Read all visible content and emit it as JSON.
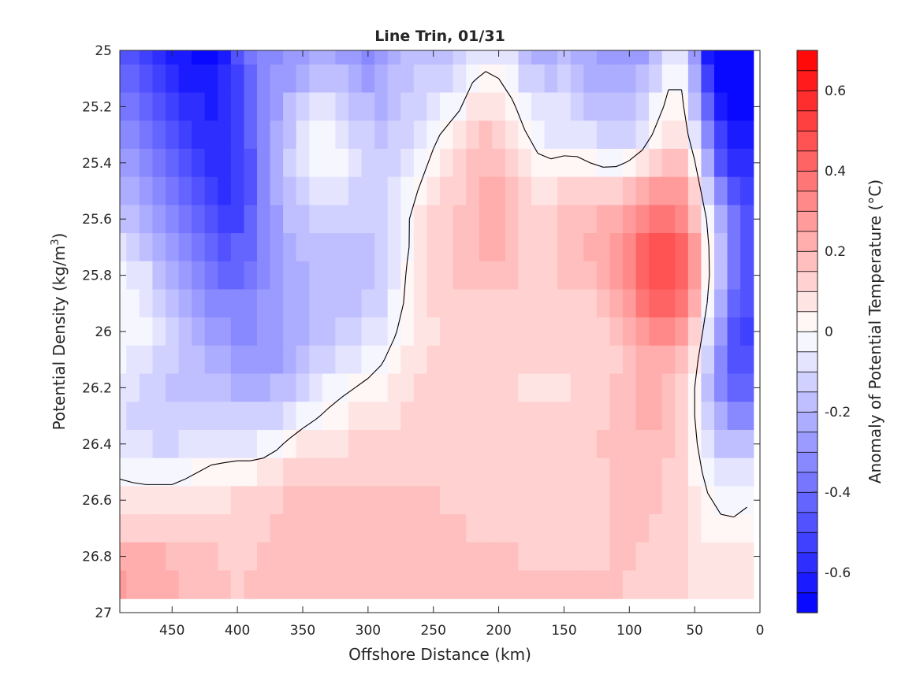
{
  "chart_data": {
    "type": "heatmap",
    "title": "Line Trin, 01/31",
    "xlabel": "Offshore Distance (km)",
    "ylabel_main": "Potential Density (kg/m",
    "ylabel_sup": "3",
    "ylabel_close": ")",
    "xlim": [
      490,
      0
    ],
    "ylim": [
      25,
      27
    ],
    "x_reversed": true,
    "y_reversed": true,
    "xticks": [
      450,
      400,
      350,
      300,
      250,
      200,
      150,
      100,
      50,
      0
    ],
    "xtick_labels": [
      "450",
      "400",
      "350",
      "300",
      "250",
      "200",
      "150",
      "100",
      "50",
      "0"
    ],
    "yticks": [
      25,
      25.2,
      25.4,
      25.6,
      25.8,
      26,
      26.2,
      26.4,
      26.6,
      26.8,
      27
    ],
    "ytick_labels": [
      "25",
      "25.2",
      "25.4",
      "25.6",
      "25.8",
      "26",
      "26.2",
      "26.4",
      "26.6",
      "26.8",
      "27"
    ],
    "colorbar": {
      "label": "Anomaly of Potential Temperature (°C)",
      "range": [
        -0.7,
        0.7
      ],
      "levels": 28,
      "ticks": [
        -0.6,
        -0.4,
        -0.2,
        0,
        0.2,
        0.4,
        0.6
      ],
      "tick_labels": [
        "-0.6",
        "-0.4",
        "-0.2",
        "0",
        "0.2",
        "0.4",
        "0.6"
      ],
      "colormap": "blue-white-red",
      "color_min": "#0000ff",
      "color_mid": "#ffffff",
      "color_max": "#ff0000"
    },
    "grid": {
      "x": [
        490,
        480,
        470,
        460,
        450,
        440,
        430,
        420,
        410,
        400,
        390,
        380,
        370,
        360,
        350,
        340,
        330,
        320,
        310,
        300,
        290,
        280,
        270,
        260,
        250,
        240,
        230,
        220,
        210,
        200,
        190,
        180,
        170,
        160,
        150,
        140,
        130,
        120,
        110,
        100,
        90,
        80,
        70,
        60,
        50,
        40,
        30,
        20,
        10
      ],
      "y": [
        25.0,
        25.1,
        25.2,
        25.3,
        25.4,
        25.5,
        25.6,
        25.7,
        25.8,
        25.9,
        26.0,
        26.1,
        26.2,
        26.3,
        26.4,
        26.5,
        26.6,
        26.7,
        26.8,
        26.9
      ],
      "cells": [
        [
          -0.47,
          -0.49,
          -0.51,
          -0.55,
          -0.6,
          -0.64,
          -0.66,
          -0.66,
          -0.6,
          -0.49,
          -0.39,
          -0.33,
          -0.31,
          -0.3,
          -0.27,
          -0.24,
          -0.24,
          -0.27,
          -0.3,
          -0.32,
          -0.29,
          -0.23,
          -0.18,
          -0.16,
          -0.18,
          -0.17,
          -0.13,
          -0.09,
          -0.06,
          -0.07,
          -0.1,
          -0.17,
          -0.21,
          -0.22,
          -0.2,
          -0.21,
          -0.24,
          -0.26,
          -0.29,
          -0.3,
          -0.26,
          -0.17,
          -0.07,
          -0.07,
          -0.3,
          -0.61,
          -0.7,
          -0.7,
          -0.7
        ],
        [
          -0.43,
          -0.44,
          -0.46,
          -0.5,
          -0.56,
          -0.6,
          -0.63,
          -0.63,
          -0.59,
          -0.5,
          -0.4,
          -0.33,
          -0.29,
          -0.26,
          -0.22,
          -0.18,
          -0.18,
          -0.2,
          -0.24,
          -0.26,
          -0.25,
          -0.2,
          -0.16,
          -0.14,
          -0.13,
          -0.12,
          -0.07,
          -0.01,
          0.02,
          0.0,
          -0.05,
          -0.11,
          -0.15,
          -0.16,
          -0.15,
          -0.17,
          -0.21,
          -0.23,
          -0.25,
          -0.25,
          -0.2,
          -0.11,
          -0.02,
          -0.02,
          -0.23,
          -0.52,
          -0.7,
          -0.7,
          -0.7
        ],
        [
          -0.38,
          -0.39,
          -0.42,
          -0.46,
          -0.51,
          -0.56,
          -0.59,
          -0.61,
          -0.58,
          -0.51,
          -0.42,
          -0.33,
          -0.26,
          -0.2,
          -0.14,
          -0.09,
          -0.08,
          -0.12,
          -0.16,
          -0.2,
          -0.21,
          -0.18,
          -0.15,
          -0.11,
          -0.08,
          -0.05,
          -0.01,
          0.06,
          0.09,
          0.08,
          0.02,
          -0.05,
          -0.09,
          -0.1,
          -0.1,
          -0.13,
          -0.17,
          -0.19,
          -0.2,
          -0.18,
          -0.13,
          -0.05,
          0.03,
          0.03,
          -0.16,
          -0.42,
          -0.62,
          -0.7,
          -0.7
        ],
        [
          -0.33,
          -0.34,
          -0.37,
          -0.41,
          -0.46,
          -0.52,
          -0.56,
          -0.59,
          -0.58,
          -0.52,
          -0.43,
          -0.33,
          -0.24,
          -0.16,
          -0.08,
          -0.02,
          -0.02,
          -0.06,
          -0.11,
          -0.15,
          -0.17,
          -0.15,
          -0.12,
          -0.07,
          -0.02,
          0.02,
          0.06,
          0.11,
          0.15,
          0.13,
          0.08,
          0.01,
          -0.04,
          -0.06,
          -0.06,
          -0.07,
          -0.1,
          -0.12,
          -0.13,
          -0.11,
          -0.06,
          0.02,
          0.08,
          0.09,
          -0.09,
          -0.34,
          -0.53,
          -0.63,
          -0.64
        ],
        [
          -0.28,
          -0.28,
          -0.31,
          -0.36,
          -0.42,
          -0.47,
          -0.53,
          -0.57,
          -0.58,
          -0.54,
          -0.45,
          -0.34,
          -0.24,
          -0.15,
          -0.07,
          -0.02,
          -0.02,
          -0.05,
          -0.09,
          -0.12,
          -0.14,
          -0.12,
          -0.08,
          -0.03,
          0.02,
          0.07,
          0.11,
          0.15,
          0.18,
          0.17,
          0.12,
          0.07,
          0.02,
          0.01,
          0.02,
          0.02,
          0.0,
          -0.02,
          -0.02,
          0.01,
          0.05,
          0.1,
          0.15,
          0.16,
          0.01,
          -0.24,
          -0.45,
          -0.55,
          -0.56
        ],
        [
          -0.22,
          -0.23,
          -0.26,
          -0.32,
          -0.38,
          -0.44,
          -0.49,
          -0.54,
          -0.56,
          -0.53,
          -0.45,
          -0.35,
          -0.25,
          -0.17,
          -0.11,
          -0.08,
          -0.07,
          -0.08,
          -0.11,
          -0.13,
          -0.13,
          -0.09,
          -0.04,
          0.01,
          0.06,
          0.1,
          0.14,
          0.18,
          0.21,
          0.2,
          0.16,
          0.11,
          0.07,
          0.07,
          0.1,
          0.13,
          0.12,
          0.11,
          0.13,
          0.16,
          0.21,
          0.25,
          0.26,
          0.25,
          0.11,
          -0.12,
          -0.34,
          -0.47,
          -0.51
        ],
        [
          -0.16,
          -0.17,
          -0.21,
          -0.27,
          -0.33,
          -0.39,
          -0.44,
          -0.48,
          -0.51,
          -0.5,
          -0.44,
          -0.35,
          -0.26,
          -0.2,
          -0.16,
          -0.14,
          -0.13,
          -0.13,
          -0.14,
          -0.14,
          -0.13,
          -0.08,
          -0.01,
          0.05,
          0.1,
          0.13,
          0.16,
          0.19,
          0.22,
          0.21,
          0.18,
          0.13,
          0.11,
          0.11,
          0.15,
          0.18,
          0.19,
          0.2,
          0.24,
          0.29,
          0.34,
          0.37,
          0.37,
          0.33,
          0.19,
          -0.02,
          -0.24,
          -0.39,
          -0.46
        ],
        [
          -0.1,
          -0.12,
          -0.16,
          -0.22,
          -0.28,
          -0.34,
          -0.39,
          -0.43,
          -0.45,
          -0.44,
          -0.4,
          -0.34,
          -0.27,
          -0.23,
          -0.2,
          -0.18,
          -0.17,
          -0.17,
          -0.16,
          -0.16,
          -0.14,
          -0.09,
          -0.01,
          0.06,
          0.11,
          0.14,
          0.17,
          0.19,
          0.21,
          0.2,
          0.17,
          0.14,
          0.12,
          0.13,
          0.16,
          0.19,
          0.2,
          0.23,
          0.28,
          0.35,
          0.41,
          0.45,
          0.45,
          0.41,
          0.25,
          0.02,
          -0.2,
          -0.36,
          -0.45
        ],
        [
          -0.05,
          -0.07,
          -0.1,
          -0.16,
          -0.22,
          -0.28,
          -0.33,
          -0.38,
          -0.4,
          -0.4,
          -0.36,
          -0.31,
          -0.26,
          -0.23,
          -0.21,
          -0.19,
          -0.19,
          -0.18,
          -0.17,
          -0.17,
          -0.14,
          -0.08,
          0.01,
          0.07,
          0.11,
          0.13,
          0.15,
          0.17,
          0.18,
          0.17,
          0.15,
          0.13,
          0.12,
          0.12,
          0.15,
          0.17,
          0.18,
          0.21,
          0.27,
          0.34,
          0.41,
          0.45,
          0.45,
          0.41,
          0.26,
          0.03,
          -0.2,
          -0.37,
          -0.46
        ],
        [
          -0.02,
          -0.03,
          -0.06,
          -0.11,
          -0.16,
          -0.22,
          -0.27,
          -0.31,
          -0.34,
          -0.35,
          -0.33,
          -0.29,
          -0.26,
          -0.23,
          -0.21,
          -0.19,
          -0.18,
          -0.17,
          -0.16,
          -0.15,
          -0.11,
          -0.05,
          0.02,
          0.07,
          0.1,
          0.11,
          0.12,
          0.13,
          0.14,
          0.14,
          0.13,
          0.12,
          0.11,
          0.11,
          0.12,
          0.13,
          0.14,
          0.17,
          0.22,
          0.29,
          0.36,
          0.4,
          0.41,
          0.36,
          0.21,
          -0.01,
          -0.24,
          -0.4,
          -0.48
        ],
        [
          -0.02,
          -0.03,
          -0.05,
          -0.09,
          -0.14,
          -0.18,
          -0.22,
          -0.26,
          -0.29,
          -0.31,
          -0.31,
          -0.29,
          -0.27,
          -0.24,
          -0.21,
          -0.19,
          -0.17,
          -0.15,
          -0.13,
          -0.1,
          -0.06,
          -0.01,
          0.04,
          0.08,
          0.09,
          0.1,
          0.1,
          0.1,
          0.11,
          0.11,
          0.11,
          0.11,
          0.1,
          0.1,
          0.11,
          0.11,
          0.12,
          0.13,
          0.16,
          0.21,
          0.27,
          0.31,
          0.31,
          0.27,
          0.13,
          -0.08,
          -0.29,
          -0.45,
          -0.5
        ],
        [
          -0.05,
          -0.07,
          -0.09,
          -0.12,
          -0.14,
          -0.16,
          -0.18,
          -0.21,
          -0.24,
          -0.26,
          -0.27,
          -0.27,
          -0.26,
          -0.23,
          -0.19,
          -0.15,
          -0.12,
          -0.09,
          -0.06,
          -0.04,
          -0.01,
          0.03,
          0.06,
          0.09,
          0.11,
          0.11,
          0.11,
          0.11,
          0.11,
          0.11,
          0.1,
          0.1,
          0.1,
          0.1,
          0.1,
          0.1,
          0.11,
          0.12,
          0.14,
          0.17,
          0.21,
          0.24,
          0.23,
          0.18,
          0.05,
          -0.14,
          -0.33,
          -0.45,
          -0.48
        ],
        [
          -0.07,
          -0.1,
          -0.13,
          -0.15,
          -0.16,
          -0.16,
          -0.16,
          -0.17,
          -0.19,
          -0.21,
          -0.22,
          -0.22,
          -0.2,
          -0.17,
          -0.12,
          -0.08,
          -0.05,
          -0.02,
          0.0,
          0.02,
          0.04,
          0.06,
          0.08,
          0.1,
          0.12,
          0.12,
          0.12,
          0.11,
          0.11,
          0.1,
          0.1,
          0.09,
          0.09,
          0.09,
          0.09,
          0.1,
          0.11,
          0.12,
          0.15,
          0.18,
          0.2,
          0.21,
          0.19,
          0.13,
          0.0,
          -0.16,
          -0.31,
          -0.4,
          -0.4
        ],
        [
          -0.08,
          -0.11,
          -0.14,
          -0.15,
          -0.15,
          -0.14,
          -0.13,
          -0.12,
          -0.13,
          -0.14,
          -0.15,
          -0.14,
          -0.12,
          -0.08,
          -0.04,
          -0.01,
          0.02,
          0.04,
          0.05,
          0.06,
          0.08,
          0.09,
          0.1,
          0.11,
          0.12,
          0.12,
          0.12,
          0.12,
          0.11,
          0.11,
          0.1,
          0.1,
          0.1,
          0.1,
          0.1,
          0.11,
          0.12,
          0.14,
          0.16,
          0.18,
          0.2,
          0.2,
          0.18,
          0.12,
          0.0,
          -0.13,
          -0.25,
          -0.31,
          -0.31
        ],
        [
          -0.06,
          -0.08,
          -0.1,
          -0.11,
          -0.11,
          -0.09,
          -0.07,
          -0.06,
          -0.06,
          -0.06,
          -0.06,
          -0.05,
          -0.02,
          0.02,
          0.05,
          0.07,
          0.08,
          0.09,
          0.1,
          0.1,
          0.11,
          0.12,
          0.12,
          0.13,
          0.13,
          0.13,
          0.13,
          0.12,
          0.12,
          0.11,
          0.11,
          0.11,
          0.11,
          0.11,
          0.11,
          0.12,
          0.13,
          0.15,
          0.16,
          0.18,
          0.19,
          0.18,
          0.16,
          0.11,
          0.02,
          -0.08,
          -0.16,
          -0.2,
          -0.19
        ],
        [
          -0.02,
          -0.03,
          -0.04,
          -0.04,
          -0.04,
          -0.02,
          0.0,
          0.02,
          0.03,
          0.04,
          0.04,
          0.05,
          0.07,
          0.1,
          0.12,
          0.14,
          0.14,
          0.14,
          0.13,
          0.13,
          0.13,
          0.14,
          0.14,
          0.14,
          0.14,
          0.14,
          0.13,
          0.13,
          0.12,
          0.12,
          0.12,
          0.12,
          0.12,
          0.12,
          0.12,
          0.12,
          0.13,
          0.14,
          0.16,
          0.17,
          0.17,
          0.16,
          0.14,
          0.1,
          0.04,
          -0.03,
          -0.07,
          -0.09,
          -0.07
        ],
        [
          0.06,
          0.05,
          0.05,
          0.05,
          0.05,
          0.06,
          0.07,
          0.08,
          0.09,
          0.1,
          0.1,
          0.11,
          0.13,
          0.15,
          0.17,
          0.17,
          0.17,
          0.16,
          0.15,
          0.15,
          0.15,
          0.15,
          0.15,
          0.15,
          0.15,
          0.14,
          0.14,
          0.14,
          0.13,
          0.13,
          0.13,
          0.13,
          0.13,
          0.13,
          0.13,
          0.13,
          0.13,
          0.14,
          0.15,
          0.16,
          0.16,
          0.15,
          0.13,
          0.1,
          0.05,
          0.01,
          -0.02,
          -0.03,
          -0.01
        ],
        [
          0.14,
          0.14,
          0.14,
          0.14,
          0.14,
          0.14,
          0.13,
          0.13,
          0.13,
          0.13,
          0.13,
          0.14,
          0.15,
          0.17,
          0.18,
          0.18,
          0.18,
          0.17,
          0.16,
          0.16,
          0.16,
          0.16,
          0.16,
          0.16,
          0.15,
          0.15,
          0.15,
          0.14,
          0.14,
          0.14,
          0.14,
          0.14,
          0.14,
          0.14,
          0.14,
          0.14,
          0.14,
          0.14,
          0.15,
          0.15,
          0.15,
          0.14,
          0.12,
          0.1,
          0.07,
          0.04,
          0.02,
          0.02,
          0.03
        ],
        [
          0.21,
          0.21,
          0.21,
          0.2,
          0.19,
          0.17,
          0.16,
          0.15,
          0.14,
          0.14,
          0.14,
          0.15,
          0.16,
          0.17,
          0.18,
          0.18,
          0.18,
          0.18,
          0.17,
          0.17,
          0.17,
          0.17,
          0.16,
          0.16,
          0.16,
          0.15,
          0.15,
          0.15,
          0.15,
          0.15,
          0.15,
          0.14,
          0.14,
          0.14,
          0.14,
          0.14,
          0.14,
          0.14,
          0.15,
          0.15,
          0.14,
          0.13,
          0.12,
          0.1,
          0.08,
          0.06,
          0.05,
          0.05,
          0.05
        ],
        [
          0.25,
          0.24,
          0.23,
          0.22,
          0.2,
          0.18,
          0.16,
          0.15,
          0.15,
          0.14,
          0.15,
          0.15,
          0.16,
          0.17,
          0.18,
          0.19,
          0.19,
          0.18,
          0.18,
          0.17,
          0.17,
          0.17,
          0.17,
          0.16,
          0.16,
          0.16,
          0.16,
          0.15,
          0.15,
          0.15,
          0.15,
          0.15,
          0.15,
          0.15,
          0.15,
          0.15,
          0.15,
          0.15,
          0.15,
          0.14,
          0.14,
          0.13,
          0.12,
          0.1,
          0.08,
          0.07,
          0.06,
          0.06,
          0.06
        ]
      ]
    }
  }
}
